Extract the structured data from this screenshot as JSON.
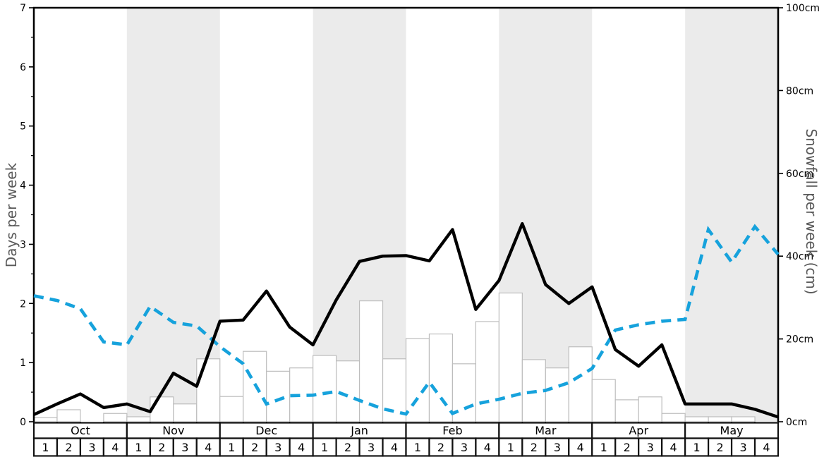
{
  "chart_data": {
    "type": "bar+line combo (dual axis)",
    "title": "",
    "months": [
      "Oct",
      "Nov",
      "Dec",
      "Jan",
      "Feb",
      "Mar",
      "Apr",
      "May"
    ],
    "weeks_per_month": [
      "1",
      "2",
      "3",
      "4"
    ],
    "shaded_months": [
      "Nov",
      "Jan",
      "Mar",
      "May"
    ],
    "left_axis": {
      "label": "Days per week",
      "min": 0,
      "max": 7,
      "major_tick_step": 1,
      "minor_tick_step": 0.5,
      "tick_labels": [
        "0",
        "1",
        "2",
        "3",
        "4",
        "5",
        "6",
        "7"
      ]
    },
    "right_axis": {
      "label": "Snowfall per week (cm)",
      "min": 0,
      "max": 100,
      "tick_step": 20,
      "tick_labels": [
        "0cm",
        "20cm",
        "40cm",
        "60cm",
        "80cm",
        "100cm"
      ]
    },
    "series": [
      {
        "name": "snowfall-bars",
        "type": "bar",
        "axis": "right",
        "unit": "cm",
        "values_cm_per_week": [
          1.0,
          2.9,
          0,
          2.0,
          1.2,
          6.0,
          4.3,
          15.2,
          6.1,
          17.0,
          12.2,
          13.0,
          16.0,
          14.7,
          29.2,
          15.2,
          20.1,
          21.2,
          14.0,
          24.2,
          31.1,
          15.0,
          13.0,
          18.1,
          10.2,
          5.3,
          6.0,
          2.0,
          1.2,
          1.2,
          1.2,
          0
        ]
      },
      {
        "name": "black-solid-line",
        "type": "line",
        "axis": "left",
        "unit": "days",
        "values_days": [
          0.12,
          0.3,
          0.47,
          0.24,
          0.3,
          0.17,
          0.82,
          0.6,
          1.7,
          1.72,
          2.21,
          1.6,
          1.3,
          2.06,
          2.71,
          2.8,
          2.81,
          2.72,
          3.25,
          1.9,
          2.39,
          3.35,
          2.32,
          2.0,
          2.28,
          1.22,
          0.94,
          1.3,
          0.3,
          0.3,
          0.3,
          0.21,
          0.08
        ]
      },
      {
        "name": "blue-dashed-line",
        "type": "line",
        "axis": "left",
        "unit": "days",
        "values_days": [
          2.13,
          2.05,
          1.91,
          1.35,
          1.3,
          1.95,
          1.68,
          1.62,
          1.27,
          0.98,
          0.3,
          0.44,
          0.45,
          0.51,
          0.36,
          0.22,
          0.13,
          0.67,
          0.14,
          0.3,
          0.38,
          0.48,
          0.53,
          0.66,
          0.9,
          1.55,
          1.64,
          1.7,
          1.73,
          3.25,
          2.7,
          3.3,
          2.83
        ]
      }
    ],
    "legend": "none",
    "grid": "off",
    "colors": {
      "black_line": "#000000",
      "blue_line": "#16a2dc",
      "month_band": "#ebebeb",
      "bar_fill": "#ffffff",
      "bar_stroke": "#bdbdbd",
      "axis_title": "#595959",
      "table_border": "#111111",
      "spine": "#000000",
      "background": "#ffffff"
    }
  }
}
